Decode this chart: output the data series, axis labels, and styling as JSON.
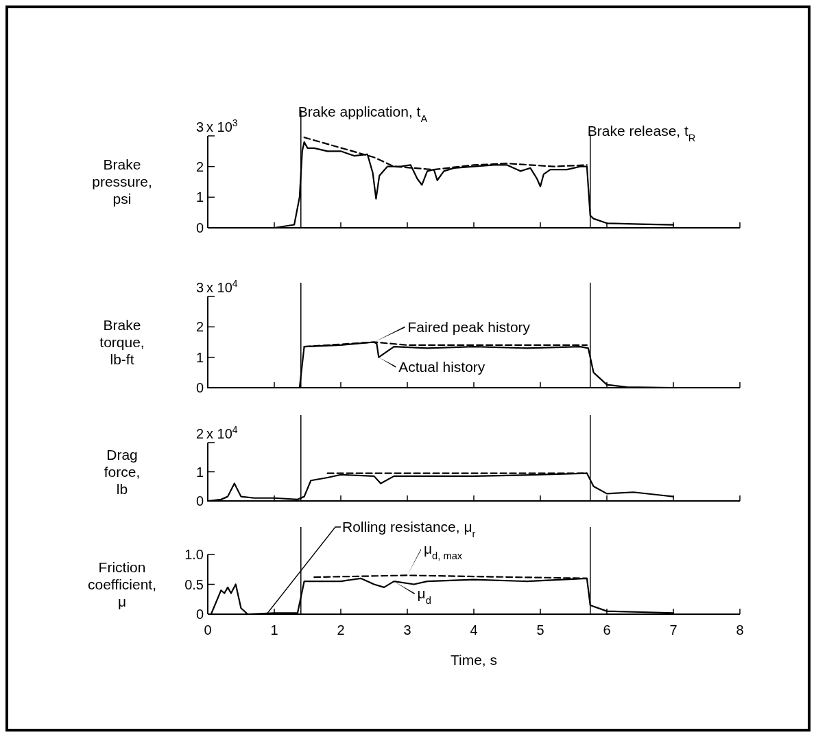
{
  "chart_data": [
    {
      "type": "line",
      "ylabel": "Brake pressure, psi",
      "xlim": [
        0,
        8
      ],
      "xticks": [
        0,
        1,
        2,
        3,
        4,
        5,
        6,
        7,
        8
      ],
      "ylim": [
        0,
        3
      ],
      "yticks": [
        0,
        1,
        2,
        3
      ],
      "tick_labels": "y",
      "grid": false,
      "annotations": [
        "x 10$^{3}$"
      ],
      "ref_lines": [
        {
          "axis": "x",
          "value": 1.4,
          "label": "Brake application, t$_{A}$"
        },
        {
          "axis": "x",
          "value": 5.75,
          "label": "Brake release, t$_{R}$"
        }
      ],
      "series": [
        {
          "color": "#000000",
          "line_style": "solid",
          "x": [
            1.0,
            1.3,
            1.38,
            1.42,
            1.45,
            1.5,
            1.6,
            1.8,
            2.0,
            2.2,
            2.4,
            2.48,
            2.53,
            2.58,
            2.7,
            2.9,
            3.05,
            3.15,
            3.22,
            3.3,
            3.4,
            3.45,
            3.55,
            3.7,
            4.0,
            4.3,
            4.5,
            4.7,
            4.85,
            4.95,
            5.0,
            5.05,
            5.15,
            5.4,
            5.6,
            5.7,
            5.75,
            5.8,
            6.0,
            6.5,
            7.0
          ],
          "values": [
            0,
            0.1,
            1.0,
            2.5,
            2.8,
            2.6,
            2.6,
            2.5,
            2.5,
            2.35,
            2.4,
            1.8,
            0.95,
            1.7,
            2.0,
            2.0,
            2.05,
            1.6,
            1.4,
            1.85,
            1.9,
            1.55,
            1.85,
            1.95,
            2.0,
            2.05,
            2.05,
            1.85,
            1.95,
            1.6,
            1.35,
            1.75,
            1.9,
            1.9,
            2.0,
            2.0,
            0.4,
            0.3,
            0.15,
            0.12,
            0.1
          ]
        },
        {
          "color": "#000000",
          "line_style": "dashed",
          "x": [
            1.45,
            2.5,
            2.8,
            3.4,
            4.0,
            4.5,
            5.2,
            5.7
          ],
          "values": [
            2.95,
            2.3,
            2.0,
            1.9,
            2.05,
            2.1,
            2.0,
            2.05
          ]
        }
      ]
    },
    {
      "type": "line",
      "ylabel": "Brake torque, lb-ft",
      "xlim": [
        0,
        8
      ],
      "xticks": [
        0,
        1,
        2,
        3,
        4,
        5,
        6,
        7,
        8
      ],
      "ylim": [
        0,
        3
      ],
      "yticks": [
        0,
        1,
        2,
        3
      ],
      "tick_labels": "y",
      "grid": false,
      "legend": "bottom left",
      "annotations": [
        "x 10$^{4}$"
      ],
      "ref_lines": [
        {
          "axis": "x",
          "value": 1.4
        },
        {
          "axis": "x",
          "value": 5.75
        }
      ],
      "series": [
        {
          "name": "Actual history",
          "color": "#000000",
          "line_style": "solid",
          "x": [
            0,
            1.38,
            1.45,
            2.0,
            2.5,
            2.54,
            2.57,
            2.8,
            3.3,
            4.0,
            4.8,
            5.6,
            5.72,
            5.8,
            6.0,
            6.3,
            7.0
          ],
          "values": [
            0,
            0,
            1.35,
            1.4,
            1.5,
            1.45,
            1.0,
            1.35,
            1.3,
            1.35,
            1.3,
            1.35,
            1.3,
            0.5,
            0.1,
            0.02,
            0
          ]
        },
        {
          "name": "Faired peak history",
          "color": "#000000",
          "line_style": "dashed",
          "x": [
            1.45,
            2.5,
            3.0,
            5.7
          ],
          "values": [
            1.35,
            1.5,
            1.4,
            1.4
          ]
        }
      ]
    },
    {
      "type": "line",
      "ylabel": "Drag force, lb",
      "xlim": [
        0,
        8
      ],
      "xticks": [
        0,
        1,
        2,
        3,
        4,
        5,
        6,
        7,
        8
      ],
      "ylim": [
        0,
        2
      ],
      "yticks": [
        0,
        1,
        2
      ],
      "tick_labels": "y",
      "grid": false,
      "annotations": [
        "x 10$^{4}$"
      ],
      "ref_lines": [
        {
          "axis": "x",
          "value": 1.4
        },
        {
          "axis": "x",
          "value": 5.75
        }
      ],
      "series": [
        {
          "color": "#000000",
          "line_style": "solid",
          "x": [
            0,
            0.2,
            0.3,
            0.4,
            0.5,
            0.7,
            1.0,
            1.35,
            1.45,
            1.55,
            1.8,
            2.0,
            2.5,
            2.6,
            2.8,
            3.5,
            4.0,
            5.0,
            5.7,
            5.8,
            6.0,
            6.4,
            6.8,
            7.0
          ],
          "values": [
            0,
            0.05,
            0.15,
            0.6,
            0.15,
            0.1,
            0.1,
            0.05,
            0.15,
            0.7,
            0.8,
            0.9,
            0.85,
            0.6,
            0.85,
            0.85,
            0.85,
            0.9,
            0.95,
            0.5,
            0.25,
            0.3,
            0.2,
            0.15
          ]
        },
        {
          "color": "#000000",
          "line_style": "dashed",
          "x": [
            1.8,
            5.7
          ],
          "values": [
            0.95,
            0.95
          ]
        }
      ]
    },
    {
      "type": "line",
      "ylabel": "Friction coefficient, μ",
      "xlabel": "Time, s",
      "xlim": [
        0,
        8
      ],
      "xticks": [
        0,
        1,
        2,
        3,
        4,
        5,
        6,
        7,
        8
      ],
      "ylim": [
        0,
        1.0
      ],
      "yticks": [
        0,
        0.5,
        {
          "value": 1.0,
          "label": "1.0"
        }
      ],
      "grid": false,
      "legend": "bottom left",
      "ref_lines": [
        {
          "axis": "x",
          "value": 1.4
        },
        {
          "axis": "x",
          "value": 5.75
        }
      ],
      "annotations": [
        {
          "text": "Rolling resistance, μ$_{r}$",
          "x": 0.9,
          "y": 0.02
        }
      ],
      "series": [
        {
          "name": "μ$_{d}$",
          "color": "#000000",
          "line_style": "solid",
          "x": [
            0.05,
            0.2,
            0.25,
            0.3,
            0.35,
            0.42,
            0.5,
            0.6,
            1.0,
            1.35,
            1.45,
            2.0,
            2.3,
            2.5,
            2.65,
            2.8,
            3.1,
            3.3,
            4.0,
            4.8,
            5.7,
            5.75,
            6.0,
            7.0
          ],
          "values": [
            0,
            0.4,
            0.35,
            0.45,
            0.35,
            0.5,
            0.1,
            0,
            0.02,
            0.02,
            0.55,
            0.55,
            0.6,
            0.5,
            0.45,
            0.55,
            0.5,
            0.55,
            0.58,
            0.55,
            0.6,
            0.15,
            0.05,
            0.02
          ]
        },
        {
          "name": "μ$_{d, max}$",
          "color": "#000000",
          "line_style": "dashed",
          "x": [
            1.6,
            3.0,
            5.7
          ],
          "values": [
            0.62,
            0.65,
            0.6
          ]
        }
      ]
    }
  ]
}
